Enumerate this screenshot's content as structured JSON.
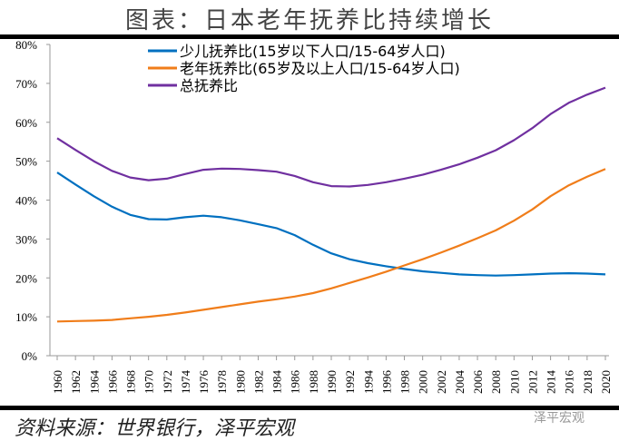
{
  "title": "图表：日本老年抚养比持续增长",
  "source": "资料来源：世界银行，泽平宏观",
  "watermark": "泽平宏观",
  "chart_data": {
    "type": "line",
    "title": "图表：日本老年抚养比持续增长",
    "x": [
      1960,
      1962,
      1964,
      1966,
      1968,
      1970,
      1972,
      1974,
      1976,
      1978,
      1980,
      1982,
      1984,
      1986,
      1988,
      1990,
      1992,
      1994,
      1996,
      1998,
      2000,
      2002,
      2004,
      2006,
      2008,
      2010,
      2012,
      2014,
      2016,
      2018,
      2020
    ],
    "ylim": [
      0,
      80
    ],
    "yticks": [
      "0%",
      "10%",
      "20%",
      "30%",
      "40%",
      "50%",
      "60%",
      "70%",
      "80%"
    ],
    "grid": false,
    "legend": "top-left",
    "series": [
      {
        "name": "少儿抚养比(15岁以下人口/15-64岁人口)",
        "color": "#0070C0",
        "values": [
          47.1,
          44,
          41,
          38.3,
          36.2,
          35.1,
          35,
          35.6,
          36,
          35.6,
          34.8,
          33.8,
          32.8,
          31,
          28.5,
          26.3,
          24.8,
          23.8,
          23,
          22.3,
          21.7,
          21.3,
          20.9,
          20.7,
          20.6,
          20.7,
          20.9,
          21.1,
          21.2,
          21.1,
          20.9
        ]
      },
      {
        "name": "老年抚养比(65岁及以上人口/15-64岁人口)",
        "color": "#F07D1A",
        "values": [
          8.8,
          8.9,
          9.0,
          9.2,
          9.6,
          10.0,
          10.5,
          11.1,
          11.8,
          12.5,
          13.2,
          13.9,
          14.5,
          15.2,
          16.1,
          17.3,
          18.7,
          20.1,
          21.6,
          23.2,
          24.8,
          26.5,
          28.3,
          30.2,
          32.2,
          34.7,
          37.6,
          41.0,
          43.8,
          46.0,
          48.0
        ]
      },
      {
        "name": "总抚养比",
        "color": "#7030A0",
        "values": [
          55.9,
          52.9,
          50,
          47.5,
          45.8,
          45.1,
          45.5,
          46.7,
          47.8,
          48.1,
          48,
          47.7,
          47.3,
          46.2,
          44.6,
          43.6,
          43.5,
          43.9,
          44.6,
          45.5,
          46.5,
          47.8,
          49.2,
          50.9,
          52.8,
          55.4,
          58.5,
          62.1,
          65,
          67.1,
          68.9
        ]
      }
    ]
  }
}
